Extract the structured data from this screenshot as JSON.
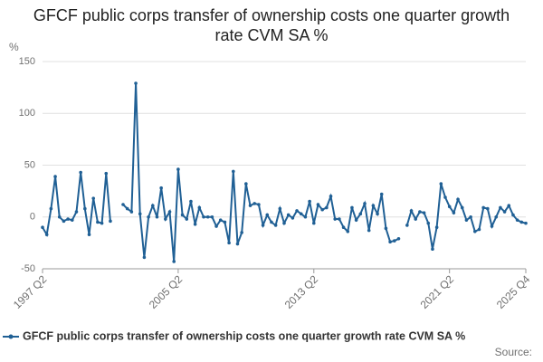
{
  "chart_data": {
    "type": "line",
    "title": "GFCF public corps transfer of ownership costs one quarter growth rate CVM SA %",
    "y_label": "%",
    "source": "Source:",
    "categories": [
      "1997 Q2",
      null,
      null,
      null,
      null,
      null,
      null,
      null,
      null,
      null,
      null,
      null,
      null,
      null,
      null,
      null,
      null,
      null,
      null,
      null,
      null,
      null,
      null,
      null,
      null,
      null,
      null,
      null,
      null,
      null,
      null,
      null,
      "2005 Q2",
      null,
      null,
      null,
      null,
      null,
      null,
      null,
      null,
      null,
      null,
      null,
      null,
      null,
      null,
      null,
      null,
      null,
      null,
      null,
      null,
      null,
      null,
      null,
      null,
      null,
      null,
      null,
      null,
      null,
      null,
      null,
      "2013 Q2",
      null,
      null,
      null,
      null,
      null,
      null,
      null,
      null,
      null,
      null,
      null,
      null,
      null,
      null,
      null,
      null,
      null,
      null,
      null,
      null,
      null,
      null,
      null,
      null,
      null,
      null,
      null,
      null,
      null,
      null,
      null,
      "2021 Q2",
      null,
      null,
      null,
      null,
      null,
      null,
      null,
      null,
      null,
      null,
      null,
      null,
      null,
      null,
      null,
      null,
      null,
      "2025 Q4"
    ],
    "series": [
      {
        "name": "GFCF public corps transfer of ownership costs one quarter growth rate CVM SA %",
        "color": "#206095",
        "values": [
          -10,
          -17,
          8,
          39,
          0,
          -4,
          -2,
          -3,
          5,
          43,
          8,
          -17,
          18,
          -5,
          -6,
          42,
          -4,
          null,
          null,
          12,
          8,
          5,
          129,
          3,
          -39,
          0,
          11,
          0,
          28,
          -2,
          5,
          -43,
          46,
          2,
          -2,
          15,
          -7,
          9,
          0,
          0,
          0,
          -9,
          -3,
          -5,
          -25,
          44,
          -26,
          -15,
          32,
          11,
          13,
          12,
          -8,
          2,
          -5,
          -8,
          8,
          -6,
          2,
          -1,
          6,
          3,
          0,
          15,
          -6,
          12,
          7,
          9,
          20,
          -2,
          -2,
          -10,
          -14,
          9,
          -3,
          3,
          13,
          -13,
          11,
          3,
          22,
          -11,
          -24,
          -23,
          -21,
          null,
          -8,
          6,
          -2,
          5,
          4,
          -6,
          -31,
          -10,
          32,
          19,
          10,
          4,
          17,
          9,
          -3,
          0,
          -14,
          -12,
          9,
          8,
          -9,
          0,
          9,
          5,
          11,
          2,
          -3,
          -5,
          -6
        ]
      }
    ],
    "ylim": [
      -50,
      150
    ],
    "yticks": [
      -50,
      0,
      50,
      100,
      150
    ],
    "grid": true
  }
}
